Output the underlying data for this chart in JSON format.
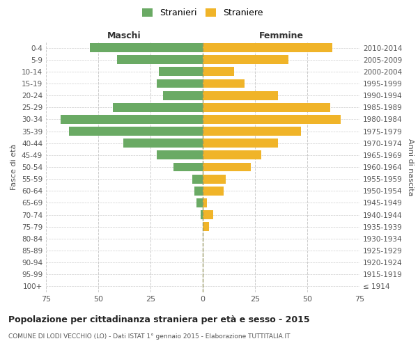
{
  "age_groups": [
    "100+",
    "95-99",
    "90-94",
    "85-89",
    "80-84",
    "75-79",
    "70-74",
    "65-69",
    "60-64",
    "55-59",
    "50-54",
    "45-49",
    "40-44",
    "35-39",
    "30-34",
    "25-29",
    "20-24",
    "15-19",
    "10-14",
    "5-9",
    "0-4"
  ],
  "birth_years": [
    "≤ 1914",
    "1915-1919",
    "1920-1924",
    "1925-1929",
    "1930-1934",
    "1935-1939",
    "1940-1944",
    "1945-1949",
    "1950-1954",
    "1955-1959",
    "1960-1964",
    "1965-1969",
    "1970-1974",
    "1975-1979",
    "1980-1984",
    "1985-1989",
    "1990-1994",
    "1995-1999",
    "2000-2004",
    "2005-2009",
    "2010-2014"
  ],
  "maschi": [
    0,
    0,
    0,
    0,
    0,
    0,
    1,
    3,
    4,
    5,
    14,
    22,
    38,
    64,
    68,
    43,
    19,
    22,
    21,
    41,
    54
  ],
  "femmine": [
    0,
    0,
    0,
    0,
    0,
    3,
    5,
    2,
    10,
    11,
    23,
    28,
    36,
    47,
    66,
    61,
    36,
    20,
    15,
    41,
    62
  ],
  "male_color": "#6aaa64",
  "female_color": "#f0b429",
  "background_color": "#ffffff",
  "grid_color": "#cccccc",
  "title": "Popolazione per cittadinanza straniera per età e sesso - 2015",
  "subtitle": "COMUNE DI LODI VECCHIO (LO) - Dati ISTAT 1° gennaio 2015 - Elaborazione TUTTITALIA.IT",
  "xlabel_left": "Maschi",
  "xlabel_right": "Femmine",
  "ylabel_left": "Fasce di età",
  "ylabel_right": "Anni di nascita",
  "legend_stranieri": "Stranieri",
  "legend_straniere": "Straniere",
  "xlim": 75,
  "bar_height": 0.75
}
